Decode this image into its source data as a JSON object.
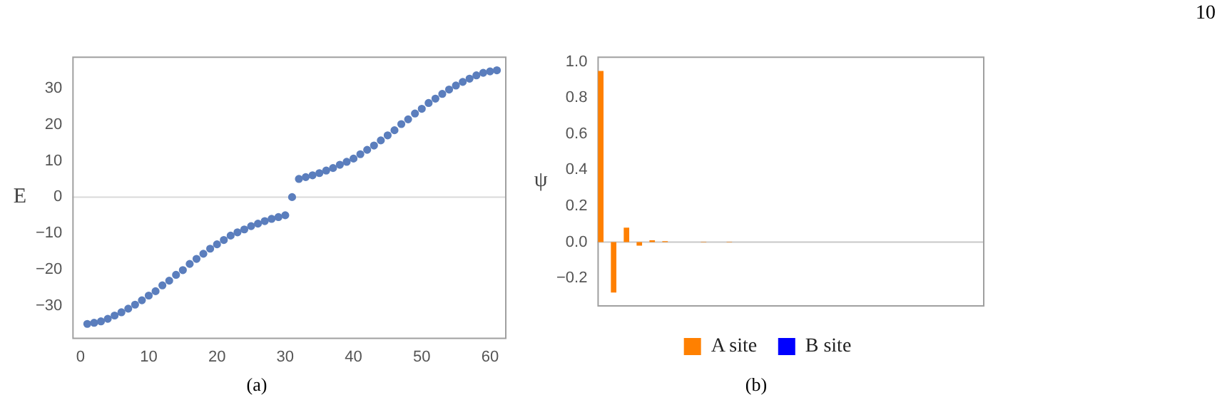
{
  "chart_data": [
    {
      "type": "scatter",
      "ylabel": "E",
      "annotations": [
        "(a)"
      ],
      "x": [
        1,
        2,
        3,
        4,
        5,
        6,
        7,
        8,
        9,
        10,
        11,
        12,
        13,
        14,
        15,
        16,
        17,
        18,
        19,
        20,
        21,
        22,
        23,
        24,
        25,
        26,
        27,
        28,
        29,
        30,
        31,
        32,
        33,
        34,
        35,
        36,
        37,
        38,
        39,
        40,
        41,
        42,
        43,
        44,
        45,
        46,
        47,
        48,
        49,
        50,
        51,
        52,
        53,
        54,
        55,
        56,
        57,
        58,
        59,
        60,
        61
      ],
      "series": [
        {
          "color": "#5b7ebd",
          "values": [
            -34.9,
            -34.6,
            -34.2,
            -33.5,
            -32.6,
            -31.7,
            -30.7,
            -29.6,
            -28.4,
            -27.1,
            -25.9,
            -24.3,
            -23.0,
            -21.4,
            -20.1,
            -18.4,
            -17.0,
            -15.6,
            -14.2,
            -13.0,
            -11.8,
            -10.6,
            -9.7,
            -8.9,
            -8.0,
            -7.3,
            -6.6,
            -6.0,
            -5.5,
            -5.0,
            0,
            5.0,
            5.5,
            6.0,
            6.6,
            7.3,
            8.0,
            8.9,
            9.7,
            10.6,
            11.8,
            13.0,
            14.2,
            15.6,
            17.0,
            18.4,
            20.1,
            21.4,
            23.0,
            24.3,
            25.9,
            27.1,
            28.4,
            29.6,
            30.7,
            31.7,
            32.6,
            33.5,
            34.2,
            34.6,
            34.9
          ]
        }
      ],
      "xlim": [
        -1.2,
        62.2
      ],
      "xticks": [
        0,
        10,
        20,
        30,
        40,
        50,
        60
      ],
      "ylim": [
        -38.7,
        38.7
      ],
      "yticks": [
        -30,
        -20,
        -10,
        0,
        10,
        20,
        30
      ],
      "ref_lines": [
        {
          "axis": "y",
          "value": 0,
          "color": "#d9d9d9"
        }
      ],
      "grid": false,
      "legend": false,
      "marker": "circle"
    },
    {
      "type": "bar",
      "ylabel": "ψ",
      "annotations": [
        "(b)",
        "10"
      ],
      "categories": [
        null,
        null,
        null,
        null,
        null,
        null,
        null,
        null,
        null,
        null,
        null,
        null,
        null,
        null,
        null,
        null,
        null,
        null,
        null,
        null,
        null,
        null,
        null,
        null,
        null,
        null,
        null,
        null,
        null,
        null
      ],
      "series": [
        {
          "name": "A site",
          "color": "#ff8000",
          "values": [
            0.95,
            -0.28,
            0.08,
            -0.02,
            0.01,
            0.005,
            0,
            0,
            0.002,
            0,
            0.002,
            0,
            0,
            0,
            0,
            0,
            0,
            0,
            0,
            0,
            0,
            0,
            0,
            0,
            0,
            0,
            0,
            0,
            0,
            0
          ]
        },
        {
          "name": "B site",
          "color": "#0000ff",
          "values": [
            0,
            0,
            0,
            0,
            0,
            0,
            0,
            0,
            0,
            0,
            0,
            0,
            0,
            0,
            0,
            0,
            0,
            0,
            0,
            0,
            0,
            0,
            0,
            0,
            0,
            0,
            0,
            0,
            0,
            0
          ]
        }
      ],
      "ylim": [
        -0.35,
        1.03
      ],
      "yticks": [
        {
          "value": -0.2,
          "label": "−0.2"
        },
        {
          "value": 0,
          "label": "0.0"
        },
        {
          "value": 0.2,
          "label": "0.2"
        },
        {
          "value": 0.4,
          "label": "0.4"
        },
        {
          "value": 0.6,
          "label": "0.6"
        },
        {
          "value": 0.8,
          "label": "0.8"
        },
        {
          "value": 1,
          "label": "1.0"
        }
      ],
      "ref_lines": [
        {
          "axis": "y",
          "value": 0,
          "color": "#c8c8c8"
        }
      ],
      "grid": false,
      "legend": "bottom",
      "tick_labels": "y",
      "stacked": false
    }
  ]
}
